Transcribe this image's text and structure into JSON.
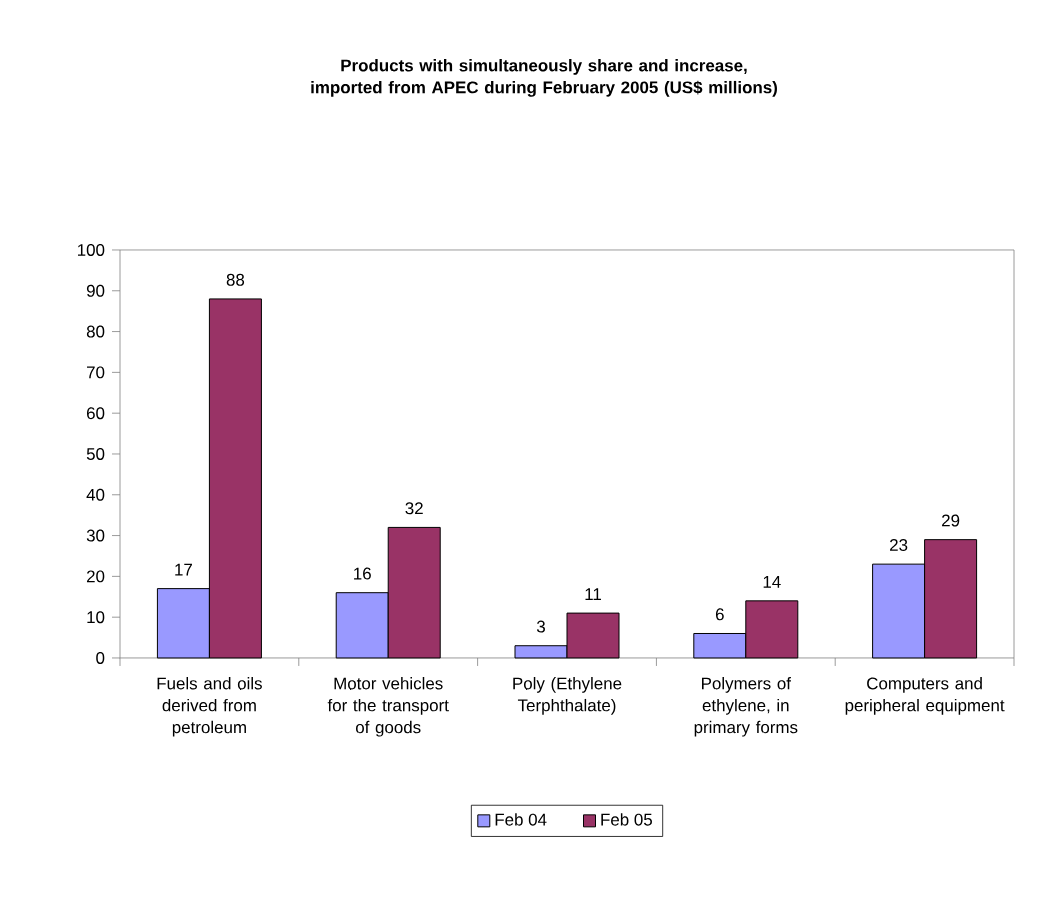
{
  "chart_data": {
    "type": "bar",
    "title": "Products with simultaneously share and increase, imported from APEC during February 2005 (US$ millions)",
    "categories": [
      "Fuels and oils derived from petroleum",
      "Motor vehicles for the transport of goods",
      "Poly (Ethylene Terphthalate)",
      "Polymers of ethylene, in primary forms",
      "Computers and peripheral equipment"
    ],
    "series": [
      {
        "name": "Feb 04",
        "color": "#9999ff",
        "values": [
          17,
          16,
          3,
          6,
          23
        ]
      },
      {
        "name": "Feb 05",
        "color": "#993366",
        "values": [
          88,
          32,
          11,
          14,
          29
        ]
      }
    ],
    "ylim": [
      0,
      100
    ],
    "yticks": [
      0,
      10,
      20,
      30,
      40,
      50,
      60,
      70,
      80,
      90,
      100
    ],
    "data_labels": true,
    "legend": "bottom",
    "grid": false
  }
}
